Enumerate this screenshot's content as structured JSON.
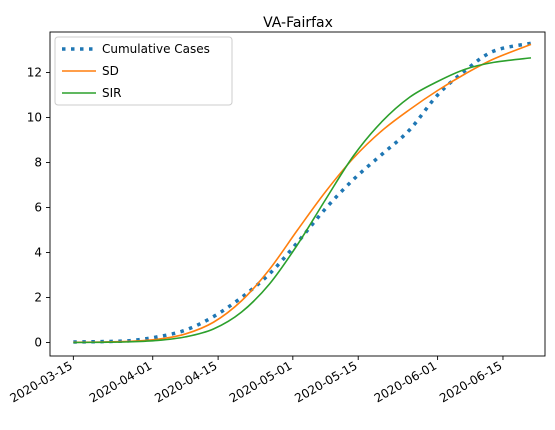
{
  "chart_data": {
    "type": "line",
    "title": "VA-Fairfax",
    "xlabel": "",
    "ylabel": "",
    "x_ticks": [
      "2020-03-15",
      "2020-04-01",
      "2020-04-15",
      "2020-05-01",
      "2020-05-15",
      "2020-06-01",
      "2020-06-15"
    ],
    "y_ticks": [
      0,
      2,
      4,
      6,
      8,
      10,
      12
    ],
    "xlim": [
      "2020-03-10",
      "2020-06-24"
    ],
    "ylim": [
      -0.6,
      13.8
    ],
    "grid": false,
    "legend_position": "upper-left",
    "x": [
      "2020-03-15",
      "2020-03-21",
      "2020-03-27",
      "2020-04-02",
      "2020-04-08",
      "2020-04-14",
      "2020-04-20",
      "2020-04-26",
      "2020-05-02",
      "2020-05-08",
      "2020-05-14",
      "2020-05-20",
      "2020-05-26",
      "2020-06-01",
      "2020-06-07",
      "2020-06-13",
      "2020-06-21"
    ],
    "series": [
      {
        "name": "Cumulative Cases",
        "color": "#1f77b4",
        "style": "dotted",
        "values": [
          0.02,
          0.04,
          0.08,
          0.25,
          0.55,
          1.15,
          2.0,
          3.05,
          4.45,
          5.95,
          7.25,
          8.35,
          9.45,
          11.0,
          12.1,
          12.95,
          13.3
        ]
      },
      {
        "name": "SD",
        "color": "#ff7f0e",
        "style": "solid",
        "values": [
          0.01,
          0.02,
          0.05,
          0.14,
          0.38,
          0.9,
          1.85,
          3.25,
          5.0,
          6.7,
          8.2,
          9.4,
          10.35,
          11.2,
          11.95,
          12.6,
          13.25
        ]
      },
      {
        "name": "SIR",
        "color": "#2ca02c",
        "style": "solid",
        "values": [
          0.0,
          0.01,
          0.03,
          0.09,
          0.25,
          0.6,
          1.35,
          2.6,
          4.35,
          6.35,
          8.3,
          9.8,
          10.9,
          11.6,
          12.15,
          12.45,
          12.65
        ]
      }
    ]
  }
}
